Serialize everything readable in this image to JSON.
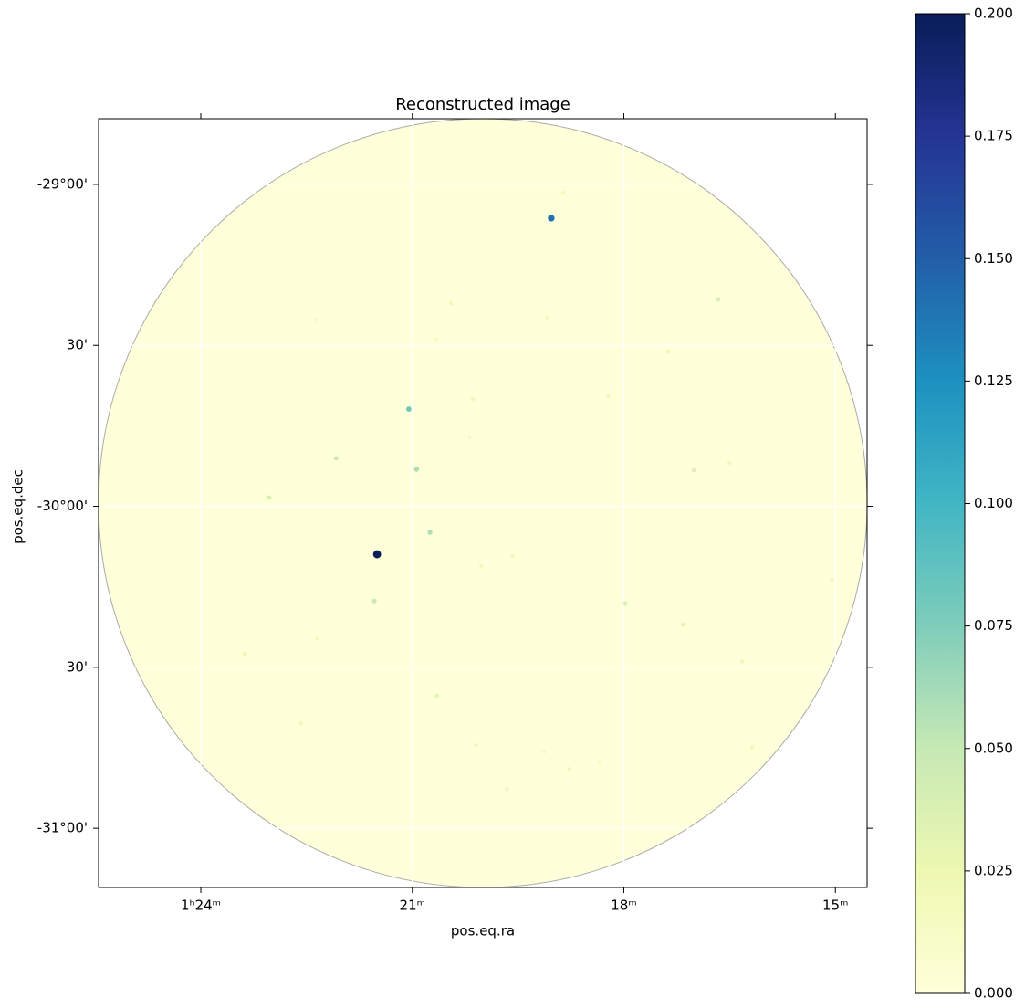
{
  "chart_data": {
    "type": "image",
    "title": "Reconstructed image",
    "x_label": "pos.eq.ra",
    "y_label": "pos.eq.dec",
    "xlim": [
      85.45,
      74.55
    ],
    "ylim": [
      -31.184,
      -28.796
    ],
    "xticks": [
      {
        "value": 84,
        "label": "1ʰ24ᵐ"
      },
      {
        "value": 81,
        "label": "21ᵐ"
      },
      {
        "value": 78,
        "label": "18ᵐ"
      },
      {
        "value": 75,
        "label": "15ᵐ"
      }
    ],
    "yticks": [
      {
        "value": -29,
        "label": "-29°00'"
      },
      {
        "value": -29.5,
        "label": "30'"
      },
      {
        "value": -30,
        "label": "-30°00'"
      },
      {
        "value": -30.5,
        "label": "30'"
      },
      {
        "value": -31,
        "label": "-31°00'"
      }
    ],
    "grid": true,
    "colormap": [
      "#ffffd9",
      "#edf8b1",
      "#c7e9b4",
      "#7fcdbb",
      "#41b6c4",
      "#1d91c0",
      "#225ea8",
      "#253494",
      "#081d58"
    ],
    "clim": [
      0,
      0.2
    ],
    "cticks": [
      {
        "value": 0,
        "label": "0.000"
      },
      {
        "value": 0.025,
        "label": "0.025"
      },
      {
        "value": 0.05,
        "label": "0.050"
      },
      {
        "value": 0.075,
        "label": "0.075"
      },
      {
        "value": 0.1,
        "label": "0.100"
      },
      {
        "value": 0.125,
        "label": "0.125"
      },
      {
        "value": 0.15,
        "label": "0.150"
      },
      {
        "value": 0.175,
        "label": "0.175"
      },
      {
        "value": 0.2,
        "label": "0.200"
      }
    ],
    "x": [
      81.5,
      79.03,
      81.05,
      80.94,
      80.75,
      81.54,
      82.08,
      83.03,
      76.66,
      77.01,
      77.98,
      77.16,
      80.65,
      77.37,
      83.38,
      82.58,
      80.1,
      78.77,
      79.66,
      76.32,
      76.18,
      80.14,
      80.45,
      79.09,
      78.22,
      80.02,
      79.58,
      76.5,
      80.19,
      78.86,
      80.66,
      82.37,
      75.05,
      82.35,
      79.13,
      78.34
    ],
    "y": [
      -30.149,
      -29.105,
      -29.698,
      -29.885,
      -30.081,
      -30.294,
      -29.851,
      -29.973,
      -29.357,
      -29.888,
      -30.302,
      -30.367,
      -30.589,
      -29.519,
      -30.458,
      -30.674,
      -30.742,
      -30.816,
      -30.878,
      -30.481,
      -30.748,
      -29.667,
      -29.369,
      -29.414,
      -29.658,
      -30.186,
      -30.155,
      -29.865,
      -29.786,
      -29.026,
      -29.482,
      -29.42,
      -30.228,
      -30.41,
      -30.762,
      -30.796
    ],
    "values": [
      0.2,
      0.14,
      0.08,
      0.06,
      0.06,
      0.05,
      0.045,
      0.04,
      0.04,
      0.035,
      0.04,
      0.03,
      0.03,
      0.025,
      0.025,
      0.02,
      0.02,
      0.02,
      0.02,
      0.02,
      0.02,
      0.02,
      0.02,
      0.015,
      0.02,
      0.02,
      0.02,
      0.02,
      0.015,
      0.02,
      0.015,
      0.015,
      0.02,
      0.015,
      0.015,
      0.015
    ]
  }
}
